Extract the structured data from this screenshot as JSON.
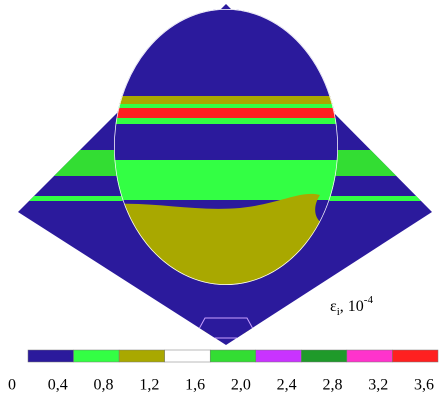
{
  "legend": {
    "label": {
      "symbol": "ε",
      "subscript": "i",
      "unit": ", 10",
      "exponent": "-4"
    },
    "ticks": [
      "0",
      "0,4",
      "0,8",
      "1,2",
      "1,6",
      "2,0",
      "2,4",
      "2,8",
      "3,2",
      "3,6"
    ],
    "colors": [
      "#2b1a9c",
      "#33ff44",
      "#a9a800",
      "#ffffff",
      "#33dd33",
      "#c933ff",
      "#1f9a2a",
      "#ff33cc",
      "#ff2020"
    ]
  }
}
